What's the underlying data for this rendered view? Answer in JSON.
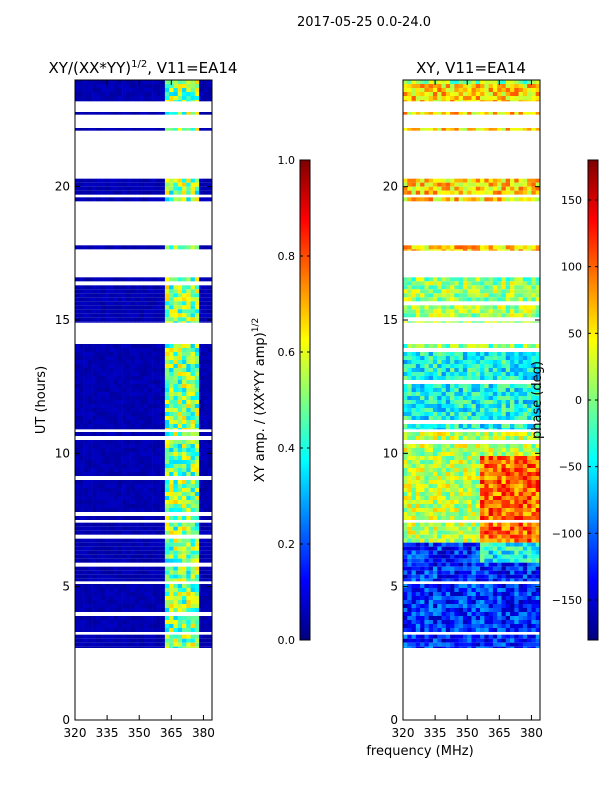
{
  "figure": {
    "suptitle": "2017-05-25 0.0-24.0",
    "xlabel_shared": "frequency (MHz)"
  },
  "chart_data": [
    {
      "type": "heatmap",
      "title": "XY/(XX*YY)",
      "title_sup": "1/2",
      "title_tail": ", V11=EA14",
      "ylabel": "UT (hours)",
      "xlim": [
        320,
        384
      ],
      "ylim": [
        0,
        24
      ],
      "xticks": [
        "320",
        "335",
        "350",
        "365",
        "380"
      ],
      "xtick_values": [
        320,
        335,
        350,
        365,
        380
      ],
      "yticks": [
        "0",
        "5",
        "10",
        "15",
        "20"
      ],
      "ytick_values": [
        0,
        5,
        10,
        15,
        20
      ],
      "colorbar": {
        "label": "XY amp. / (XX*YY amp)",
        "label_sup": "1/2",
        "range": [
          0.0,
          1.0
        ],
        "ticks": [
          "0.0",
          "0.2",
          "0.4",
          "0.6",
          "0.8",
          "1.0"
        ],
        "tick_values": [
          0.0,
          0.2,
          0.4,
          0.6,
          0.8,
          1.0
        ]
      },
      "data_segments_hours": [
        [
          2.7,
          3.2
        ],
        [
          3.3,
          5.1
        ],
        [
          5.2,
          7.4
        ],
        [
          7.5,
          10.8
        ],
        [
          10.9,
          14.1
        ],
        [
          14.9,
          16.6
        ],
        [
          17.6,
          17.8
        ],
        [
          19.3,
          19.6
        ],
        [
          19.7,
          20.3
        ],
        [
          22.1,
          22.2
        ],
        [
          22.7,
          22.8
        ],
        [
          23.2,
          24.0
        ]
      ],
      "high_amplitude_band_mhz": [
        362,
        378
      ],
      "background_level": 0.03,
      "band_level": 0.5
    },
    {
      "type": "heatmap",
      "title": "XY, V11=EA14",
      "ylabel": "",
      "xlim": [
        320,
        384
      ],
      "ylim": [
        0,
        24
      ],
      "xticks": [
        "320",
        "335",
        "350",
        "365",
        "380"
      ],
      "xtick_values": [
        320,
        335,
        350,
        365,
        380
      ],
      "yticks": [
        "0",
        "5",
        "10",
        "15",
        "20"
      ],
      "ytick_values": [
        0,
        5,
        10,
        15,
        20
      ],
      "colorbar": {
        "label": "phase (deg)",
        "range": [
          -180,
          180
        ],
        "ticks": [
          "−150",
          "−100",
          "−50",
          "0",
          "50",
          "100",
          "150"
        ],
        "tick_values": [
          -150,
          -100,
          -50,
          0,
          50,
          100,
          150
        ]
      },
      "data_segments_hours": [
        [
          2.7,
          3.2
        ],
        [
          3.3,
          5.1
        ],
        [
          5.2,
          7.4
        ],
        [
          7.5,
          10.8
        ],
        [
          10.9,
          14.1
        ],
        [
          14.9,
          16.6
        ],
        [
          17.6,
          17.8
        ],
        [
          19.3,
          19.6
        ],
        [
          19.7,
          20.3
        ],
        [
          22.1,
          22.2
        ],
        [
          22.7,
          22.8
        ],
        [
          23.2,
          24.0
        ]
      ],
      "phase_regions": [
        {
          "hours": [
            2.7,
            6.8
          ],
          "phase_deg": -120
        },
        {
          "hours": [
            6.8,
            10.8
          ],
          "phase_deg": 20
        },
        {
          "hours": [
            10.9,
            14.1
          ],
          "phase_deg": -40
        },
        {
          "hours": [
            14.9,
            16.6
          ],
          "phase_deg": 10
        },
        {
          "hours": [
            17.6,
            24.0
          ],
          "phase_deg": 60
        }
      ]
    }
  ],
  "colors": {
    "jet": [
      "#00007f",
      "#0000ff",
      "#007fff",
      "#00ffff",
      "#7fff7f",
      "#ffff00",
      "#ff7f00",
      "#ff0000",
      "#7f0000"
    ],
    "axis": "#000000",
    "background": "#ffffff"
  }
}
